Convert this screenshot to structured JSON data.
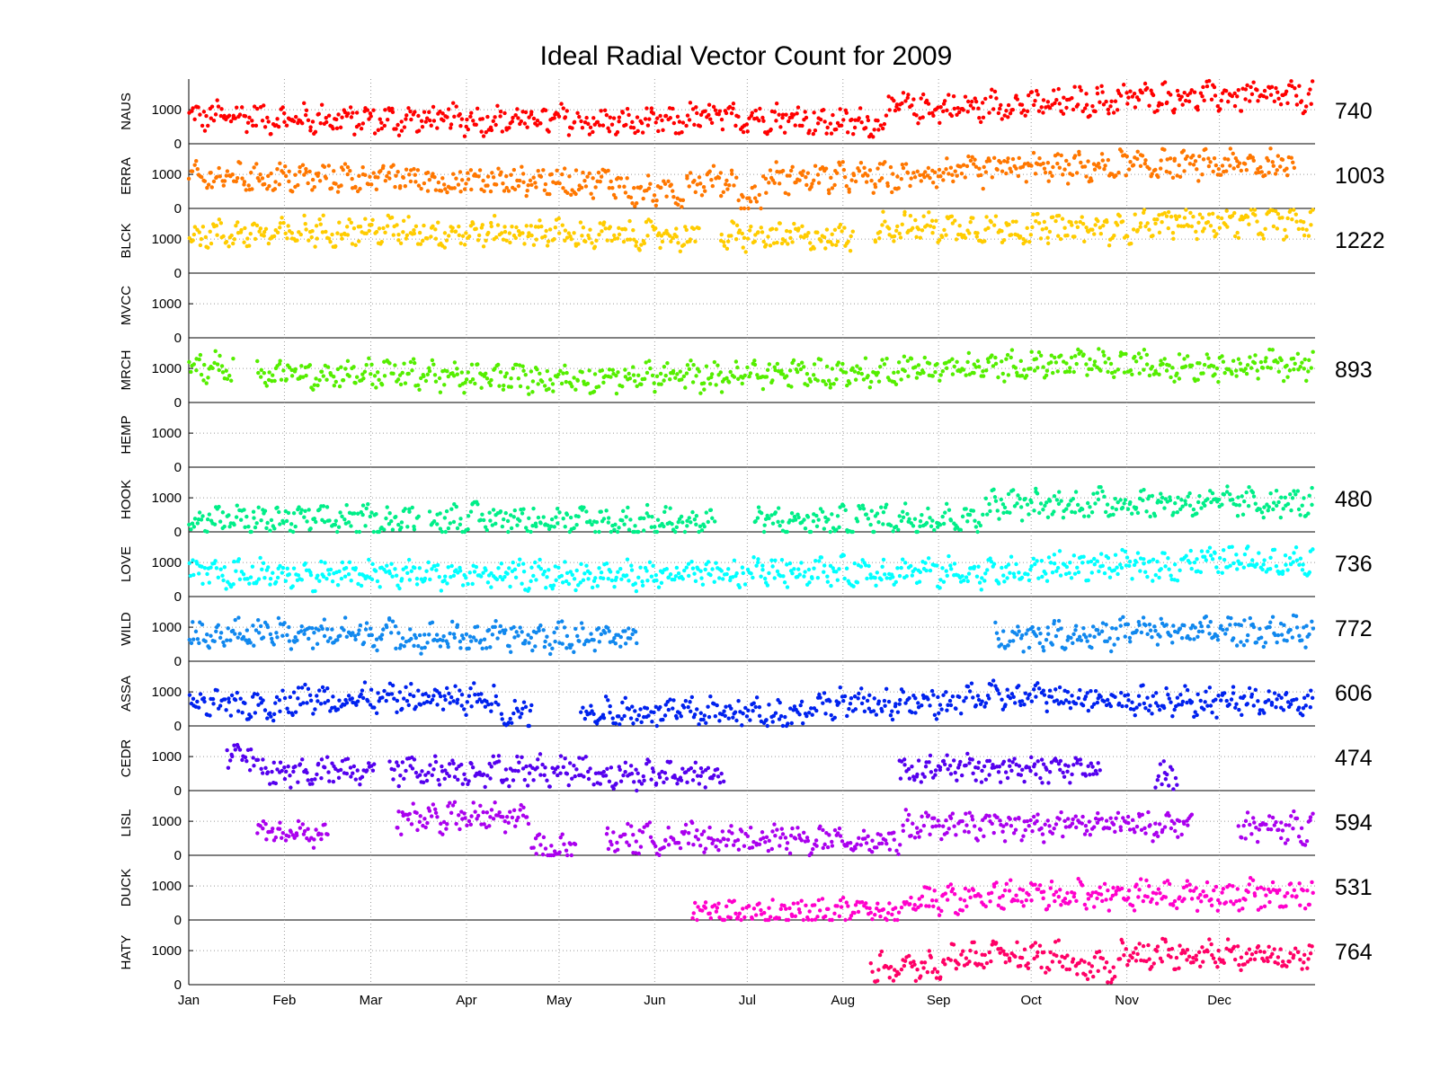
{
  "chart_data": {
    "type": "scatter",
    "title": "Ideal Radial Vector Count for 2009",
    "x_tick_labels": [
      "Jan",
      "Feb",
      "Mar",
      "Apr",
      "May",
      "Jun",
      "Jul",
      "Aug",
      "Sep",
      "Oct",
      "Nov",
      "Dec"
    ],
    "x_range_days": [
      0,
      365
    ],
    "y_range": [
      0,
      1900
    ],
    "y_ticks": [
      0,
      1000
    ],
    "grid": true,
    "series": [
      {
        "name": "NAUS",
        "color": "#ff0000",
        "stat": "740",
        "segments": [
          [
            0,
            22,
            800
          ],
          [
            23,
            60,
            720
          ],
          [
            61,
            125,
            700
          ],
          [
            126,
            160,
            620
          ],
          [
            161,
            201,
            760
          ],
          [
            202,
            225,
            620
          ],
          [
            226,
            258,
            1060
          ],
          [
            259,
            285,
            1150
          ],
          [
            286,
            302,
            1250
          ],
          [
            303,
            364,
            1380
          ]
        ]
      },
      {
        "name": "ERRA",
        "color": "#ff7700",
        "stat": "1003",
        "segments": [
          [
            0,
            75,
            900
          ],
          [
            76,
            140,
            800
          ],
          [
            141,
            160,
            480
          ],
          [
            161,
            177,
            820
          ],
          [
            178,
            185,
            260
          ],
          [
            186,
            235,
            900
          ],
          [
            236,
            260,
            1050
          ],
          [
            261,
            300,
            1200
          ],
          [
            301,
            358,
            1280
          ]
        ]
      },
      {
        "name": "BLCK",
        "color": "#ffcc00",
        "stat": "1222",
        "segments": [
          [
            0,
            36,
            1150
          ],
          [
            37,
            77,
            1250
          ],
          [
            78,
            120,
            1200
          ],
          [
            121,
            165,
            1100
          ],
          [
            172,
            215,
            1050
          ],
          [
            222,
            260,
            1350
          ],
          [
            261,
            305,
            1300
          ],
          [
            306,
            364,
            1480
          ]
        ]
      },
      {
        "name": "MVCC",
        "color": "#999999",
        "stat": "",
        "segments": []
      },
      {
        "name": "MRCH",
        "color": "#55ee00",
        "stat": "893",
        "segments": [
          [
            0,
            14,
            1050
          ],
          [
            22,
            80,
            850
          ],
          [
            81,
            140,
            720
          ],
          [
            141,
            180,
            760
          ],
          [
            181,
            225,
            850
          ],
          [
            226,
            262,
            1000
          ],
          [
            263,
            300,
            1100
          ],
          [
            301,
            364,
            1100
          ]
        ]
      },
      {
        "name": "HEMP",
        "color": "#999999",
        "stat": "",
        "segments": []
      },
      {
        "name": "HOOK",
        "color": "#00ee88",
        "stat": "480",
        "segments": [
          [
            0,
            74,
            350
          ],
          [
            78,
            120,
            400
          ],
          [
            121,
            170,
            300
          ],
          [
            183,
            215,
            320
          ],
          [
            216,
            257,
            400
          ],
          [
            258,
            290,
            800
          ],
          [
            291,
            364,
            850
          ]
        ]
      },
      {
        "name": "LOVE",
        "color": "#00ffff",
        "stat": "736",
        "segments": [
          [
            0,
            90,
            650
          ],
          [
            91,
            180,
            620
          ],
          [
            181,
            240,
            750
          ],
          [
            241,
            275,
            700
          ],
          [
            276,
            320,
            900
          ],
          [
            321,
            364,
            1050
          ]
        ]
      },
      {
        "name": "WILD",
        "color": "#1188ee",
        "stat": "772",
        "segments": [
          [
            0,
            70,
            800
          ],
          [
            71,
            145,
            700
          ],
          [
            261,
            300,
            780
          ],
          [
            301,
            364,
            880
          ]
        ]
      },
      {
        "name": "ASSA",
        "color": "#0022ee",
        "stat": "606",
        "segments": [
          [
            0,
            30,
            600
          ],
          [
            31,
            100,
            800
          ],
          [
            101,
            111,
            400
          ],
          [
            127,
            200,
            400
          ],
          [
            201,
            250,
            650
          ],
          [
            251,
            300,
            850
          ],
          [
            301,
            364,
            720
          ]
        ]
      },
      {
        "name": "CEDR",
        "color": "#5500ee",
        "stat": "474",
        "segments": [
          [
            12,
            22,
            1000
          ],
          [
            23,
            60,
            550
          ],
          [
            65,
            130,
            600
          ],
          [
            131,
            173,
            480
          ],
          [
            230,
            295,
            650
          ],
          [
            313,
            320,
            400
          ]
        ]
      },
      {
        "name": "LISL",
        "color": "#aa00ee",
        "stat": "594",
        "segments": [
          [
            22,
            45,
            650
          ],
          [
            67,
            110,
            1100
          ],
          [
            111,
            125,
            200
          ],
          [
            135,
            180,
            500
          ],
          [
            181,
            230,
            450
          ],
          [
            231,
            280,
            850
          ],
          [
            281,
            325,
            900
          ],
          [
            340,
            364,
            800
          ]
        ]
      },
      {
        "name": "DUCK",
        "color": "#ff00cc",
        "stat": "531",
        "segments": [
          [
            163,
            230,
            200
          ],
          [
            231,
            258,
            600
          ],
          [
            259,
            364,
            750
          ]
        ]
      },
      {
        "name": "HATY",
        "color": "#ff0066",
        "stat": "764",
        "segments": [
          [
            221,
            245,
            500
          ],
          [
            246,
            285,
            850
          ],
          [
            286,
            300,
            500
          ],
          [
            301,
            364,
            900
          ]
        ]
      }
    ]
  }
}
